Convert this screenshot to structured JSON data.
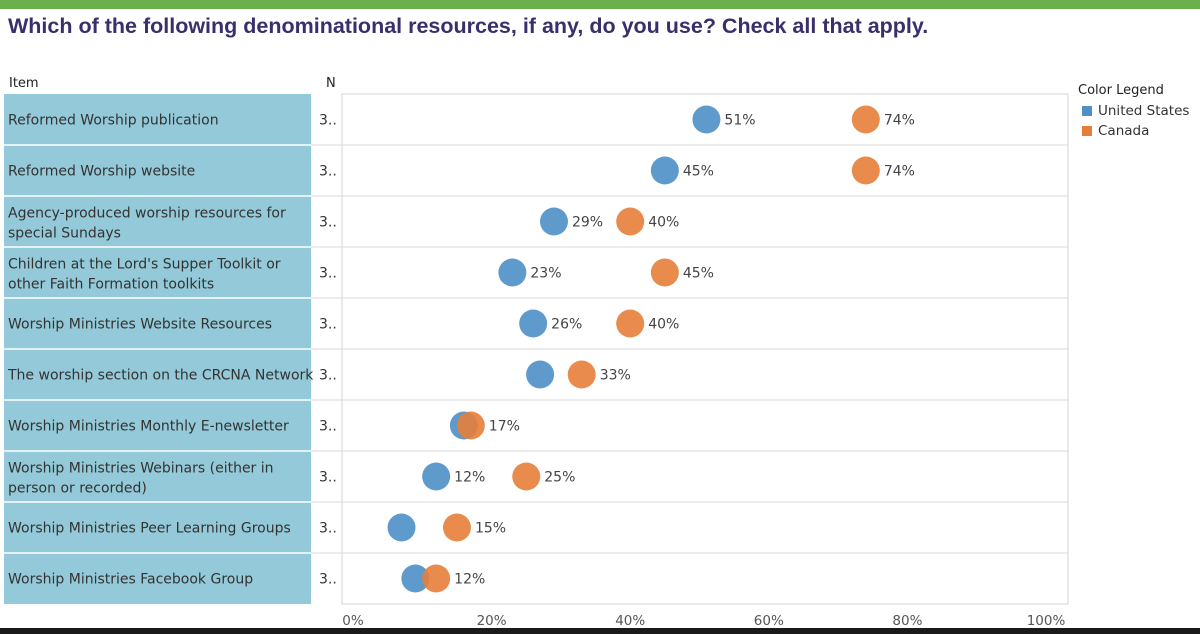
{
  "title": "Which of the following denominational resources, if any, do you use? Check all that apply.",
  "columns": {
    "item": "Item",
    "n": "N"
  },
  "legend": {
    "title": "Color Legend",
    "items": [
      {
        "label": "United States",
        "color": "#4e8fc6"
      },
      {
        "label": "Canada",
        "color": "#e67e3a"
      }
    ]
  },
  "chart_data": {
    "type": "scatter",
    "xlim": [
      0,
      100
    ],
    "x_ticks": [
      "0%",
      "20%",
      "40%",
      "60%",
      "80%",
      "100%"
    ],
    "categories": [
      "Reformed Worship publication",
      "Reformed Worship website",
      "Agency-produced worship resources for special Sundays",
      "Children at the Lord's Supper Toolkit or other Faith Formation toolkits",
      "Worship Ministries Website Resources",
      "The worship section on the CRCNA Network",
      "Worship Ministries Monthly E-newsletter",
      "Worship Ministries Webinars (either in person or recorded)",
      "Worship Ministries Peer Learning Groups",
      "Worship Ministries Facebook Group"
    ],
    "category_lines": [
      [
        "Reformed Worship publication"
      ],
      [
        "Reformed Worship website"
      ],
      [
        "Agency-produced worship resources for",
        "special Sundays"
      ],
      [
        "Children at the Lord's Supper Toolkit or",
        "other Faith Formation toolkits"
      ],
      [
        "Worship Ministries Website Resources"
      ],
      [
        "The worship section on the CRCNA Network"
      ],
      [
        "Worship Ministries Monthly E-newsletter"
      ],
      [
        "Worship Ministries Webinars (either in",
        "person or recorded)"
      ],
      [
        "Worship Ministries Peer Learning Groups"
      ],
      [
        "Worship Ministries Facebook Group"
      ]
    ],
    "n": [
      "3..",
      "3..",
      "3..",
      "3..",
      "3..",
      "3..",
      "3..",
      "3..",
      "3..",
      "3.."
    ],
    "series": [
      {
        "name": "United States",
        "color": "#4e8fc6",
        "values": [
          51,
          45,
          29,
          23,
          26,
          27,
          16,
          12,
          7,
          9
        ],
        "labels": [
          "51%",
          "45%",
          "29%",
          "23%",
          "26%",
          "",
          "",
          "12%",
          "",
          ""
        ]
      },
      {
        "name": "Canada",
        "color": "#e67e3a",
        "values": [
          74,
          74,
          40,
          45,
          40,
          33,
          17,
          25,
          15,
          12
        ],
        "labels": [
          "74%",
          "74%",
          "40%",
          "45%",
          "40%",
          "33%",
          "17%",
          "25%",
          "15%",
          "12%"
        ]
      }
    ]
  }
}
